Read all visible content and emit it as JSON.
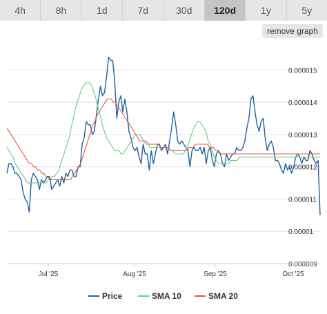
{
  "tabs": [
    {
      "label": "4h",
      "active": false
    },
    {
      "label": "8h",
      "active": false
    },
    {
      "label": "1d",
      "active": false
    },
    {
      "label": "7d",
      "active": false
    },
    {
      "label": "30d",
      "active": false
    },
    {
      "label": "120d",
      "active": true
    },
    {
      "label": "1y",
      "active": false
    },
    {
      "label": "5y",
      "active": false
    }
  ],
  "remove_graph_label": "remove graph",
  "chart_data": {
    "type": "line",
    "x_labels": [
      "Jul '25",
      "Aug '25",
      "Sep '25",
      "Oct '25"
    ],
    "y_ticks": [
      "0.000015",
      "0.000014",
      "0.000013",
      "0.000012",
      "0.000011",
      "0.00001",
      "0.000009"
    ],
    "ylim": [
      9e-06,
      1.58e-05
    ],
    "grid": true,
    "legend_position": "bottom",
    "series": [
      {
        "name": "Price",
        "color": "#1f5fa0",
        "values": [
          1.18e-05,
          1.21e-05,
          1.21e-05,
          1.2e-05,
          1.18e-05,
          1.18e-05,
          1.17e-05,
          1.16e-05,
          1.12e-05,
          1.1e-05,
          1.09e-05,
          1.06e-05,
          1.16e-05,
          1.18e-05,
          1.17e-05,
          1.16e-05,
          1.13e-05,
          1.16e-05,
          1.15e-05,
          1.16e-05,
          1.17e-05,
          1.17e-05,
          1.13e-05,
          1.14e-05,
          1.15e-05,
          1.16e-05,
          1.14e-05,
          1.17e-05,
          1.15e-05,
          1.18e-05,
          1.17e-05,
          1.19e-05,
          1.19e-05,
          1.17e-05,
          1.17e-05,
          1.2e-05,
          1.2e-05,
          1.27e-05,
          1.29e-05,
          1.34e-05,
          1.33e-05,
          1.33e-05,
          1.3e-05,
          1.31e-05,
          1.36e-05,
          1.41e-05,
          1.45e-05,
          1.42e-05,
          1.43e-05,
          1.48e-05,
          1.54e-05,
          1.53e-05,
          1.53e-05,
          1.47e-05,
          1.35e-05,
          1.4e-05,
          1.42e-05,
          1.37e-05,
          1.41e-05,
          1.37e-05,
          1.31e-05,
          1.29e-05,
          1.26e-05,
          1.25e-05,
          1.26e-05,
          1.23e-05,
          1.21e-05,
          1.27e-05,
          1.24e-05,
          1.24e-05,
          1.19e-05,
          1.25e-05,
          1.21e-05,
          1.24e-05,
          1.27e-05,
          1.27e-05,
          1.25e-05,
          1.26e-05,
          1.27e-05,
          1.24e-05,
          1.28e-05,
          1.32e-05,
          1.37e-05,
          1.33e-05,
          1.28e-05,
          1.27e-05,
          1.28e-05,
          1.27e-05,
          1.26e-05,
          1.25e-05,
          1.2e-05,
          1.25e-05,
          1.26e-05,
          1.25e-05,
          1.25e-05,
          1.26e-05,
          1.24e-05,
          1.26e-05,
          1.21e-05,
          1.25e-05,
          1.26e-05,
          1.22e-05,
          1.2e-05,
          1.24e-05,
          1.25e-05,
          1.24e-05,
          1.21e-05,
          1.2e-05,
          1.24e-05,
          1.22e-05,
          1.23e-05,
          1.24e-05,
          1.24e-05,
          1.26e-05,
          1.25e-05,
          1.25e-05,
          1.26e-05,
          1.28e-05,
          1.32e-05,
          1.35e-05,
          1.41e-05,
          1.42e-05,
          1.37e-05,
          1.33e-05,
          1.31e-05,
          1.34e-05,
          1.35e-05,
          1.29e-05,
          1.25e-05,
          1.27e-05,
          1.28e-05,
          1.26e-05,
          1.22e-05,
          1.22e-05,
          1.21e-05,
          1.19e-05,
          1.18e-05,
          1.21e-05,
          1.19e-05,
          1.2e-05,
          1.18e-05,
          1.2e-05,
          1.23e-05,
          1.24e-05,
          1.23e-05,
          1.21e-05,
          1.23e-05,
          1.22e-05,
          1.22e-05,
          1.25e-05,
          1.24e-05,
          1.22e-05,
          1.21e-05,
          1.22e-05,
          1.05e-05
        ]
      },
      {
        "name": "SMA 10",
        "color": "#5fcf7e",
        "values": [
          1.26e-05,
          1.25e-05,
          1.24e-05,
          1.23e-05,
          1.21e-05,
          1.2e-05,
          1.19e-05,
          1.18e-05,
          1.17e-05,
          1.16e-05,
          1.15e-05,
          1.15e-05,
          1.15e-05,
          1.15e-05,
          1.15e-05,
          1.15e-05,
          1.15e-05,
          1.15e-05,
          1.15e-05,
          1.15e-05,
          1.16e-05,
          1.16e-05,
          1.17e-05,
          1.17e-05,
          1.18e-05,
          1.19e-05,
          1.21e-05,
          1.23e-05,
          1.25e-05,
          1.27e-05,
          1.29e-05,
          1.32e-05,
          1.35e-05,
          1.38e-05,
          1.4e-05,
          1.42e-05,
          1.44e-05,
          1.45e-05,
          1.46e-05,
          1.46e-05,
          1.46e-05,
          1.45e-05,
          1.43e-05,
          1.41e-05,
          1.38e-05,
          1.36e-05,
          1.33e-05,
          1.31e-05,
          1.29e-05,
          1.28e-05,
          1.27e-05,
          1.26e-05,
          1.25e-05,
          1.25e-05,
          1.25e-05,
          1.24e-05,
          1.24e-05,
          1.25e-05,
          1.26e-05,
          1.27e-05,
          1.28e-05,
          1.29e-05,
          1.3e-05,
          1.3e-05,
          1.3e-05,
          1.29e-05,
          1.28e-05,
          1.27e-05,
          1.27e-05,
          1.26e-05,
          1.26e-05,
          1.26e-05,
          1.26e-05,
          1.26e-05,
          1.26e-05,
          1.26e-05,
          1.26e-05,
          1.26e-05,
          1.26e-05,
          1.25e-05,
          1.25e-05,
          1.24e-05,
          1.24e-05,
          1.24e-05,
          1.24e-05,
          1.24e-05,
          1.25e-05,
          1.26e-05,
          1.28e-05,
          1.3e-05,
          1.32e-05,
          1.33e-05,
          1.34e-05,
          1.34e-05,
          1.33e-05,
          1.32e-05,
          1.31e-05,
          1.28e-05,
          1.27e-05,
          1.25e-05,
          1.23e-05,
          1.22e-05,
          1.21e-05,
          1.21e-05,
          1.21e-05,
          1.21e-05,
          1.21e-05,
          1.21e-05,
          1.22e-05,
          1.22e-05,
          1.22e-05,
          1.22e-05,
          1.23e-05,
          1.23e-05,
          1.23e-05,
          1.23e-05,
          1.23e-05,
          1.23e-05,
          1.23e-05,
          1.23e-05,
          1.23e-05,
          1.23e-05,
          1.23e-05,
          1.23e-05,
          1.23e-05,
          1.23e-05,
          1.23e-05,
          1.23e-05,
          1.23e-05,
          1.23e-05,
          1.23e-05,
          1.23e-05,
          1.23e-05,
          1.23e-05,
          1.23e-05,
          1.23e-05,
          1.23e-05,
          1.23e-05,
          1.23e-05,
          1.23e-05,
          1.23e-05,
          1.23e-05,
          1.23e-05,
          1.23e-05,
          1.23e-05,
          1.23e-05,
          1.23e-05,
          1.23e-05,
          1.23e-05,
          1.23e-05,
          1.23e-05,
          1.23e-05
        ]
      },
      {
        "name": "SMA 20",
        "color": "#e8534a",
        "values": [
          1.32e-05,
          1.31e-05,
          1.3e-05,
          1.29e-05,
          1.28e-05,
          1.27e-05,
          1.26e-05,
          1.25e-05,
          1.24e-05,
          1.23e-05,
          1.22e-05,
          1.21e-05,
          1.21e-05,
          1.2e-05,
          1.2e-05,
          1.19e-05,
          1.19e-05,
          1.18e-05,
          1.18e-05,
          1.17e-05,
          1.17e-05,
          1.16e-05,
          1.16e-05,
          1.16e-05,
          1.16e-05,
          1.16e-05,
          1.16e-05,
          1.16e-05,
          1.16e-05,
          1.16e-05,
          1.16e-05,
          1.16e-05,
          1.17e-05,
          1.18e-05,
          1.19e-05,
          1.2e-05,
          1.21e-05,
          1.23e-05,
          1.25e-05,
          1.27e-05,
          1.29e-05,
          1.31e-05,
          1.33e-05,
          1.34e-05,
          1.36e-05,
          1.37e-05,
          1.38e-05,
          1.39e-05,
          1.4e-05,
          1.41e-05,
          1.41e-05,
          1.41e-05,
          1.4e-05,
          1.4e-05,
          1.39e-05,
          1.38e-05,
          1.37e-05,
          1.36e-05,
          1.35e-05,
          1.34e-05,
          1.33e-05,
          1.32e-05,
          1.31e-05,
          1.3e-05,
          1.29e-05,
          1.28e-05,
          1.28e-05,
          1.28e-05,
          1.28e-05,
          1.27e-05,
          1.27e-05,
          1.27e-05,
          1.27e-05,
          1.27e-05,
          1.27e-05,
          1.26e-05,
          1.26e-05,
          1.26e-05,
          1.26e-05,
          1.26e-05,
          1.25e-05,
          1.25e-05,
          1.25e-05,
          1.25e-05,
          1.25e-05,
          1.25e-05,
          1.25e-05,
          1.25e-05,
          1.25e-05,
          1.26e-05,
          1.26e-05,
          1.26e-05,
          1.27e-05,
          1.27e-05,
          1.27e-05,
          1.27e-05,
          1.27e-05,
          1.27e-05,
          1.27e-05,
          1.26e-05,
          1.26e-05,
          1.26e-05,
          1.25e-05,
          1.25e-05,
          1.24e-05,
          1.24e-05,
          1.24e-05,
          1.24e-05,
          1.24e-05,
          1.24e-05,
          1.24e-05,
          1.24e-05,
          1.24e-05,
          1.24e-05,
          1.24e-05,
          1.24e-05,
          1.24e-05,
          1.24e-05,
          1.24e-05,
          1.24e-05,
          1.24e-05,
          1.24e-05,
          1.24e-05,
          1.24e-05,
          1.24e-05,
          1.24e-05,
          1.24e-05,
          1.24e-05,
          1.24e-05,
          1.24e-05,
          1.24e-05,
          1.24e-05,
          1.24e-05,
          1.24e-05,
          1.24e-05,
          1.24e-05,
          1.24e-05,
          1.24e-05,
          1.24e-05,
          1.24e-05,
          1.24e-05,
          1.24e-05,
          1.24e-05,
          1.24e-05,
          1.24e-05,
          1.24e-05,
          1.24e-05,
          1.24e-05,
          1.24e-05,
          1.24e-05,
          1.24e-05,
          1.24e-05,
          1.24e-05,
          1.24e-05
        ]
      }
    ]
  }
}
